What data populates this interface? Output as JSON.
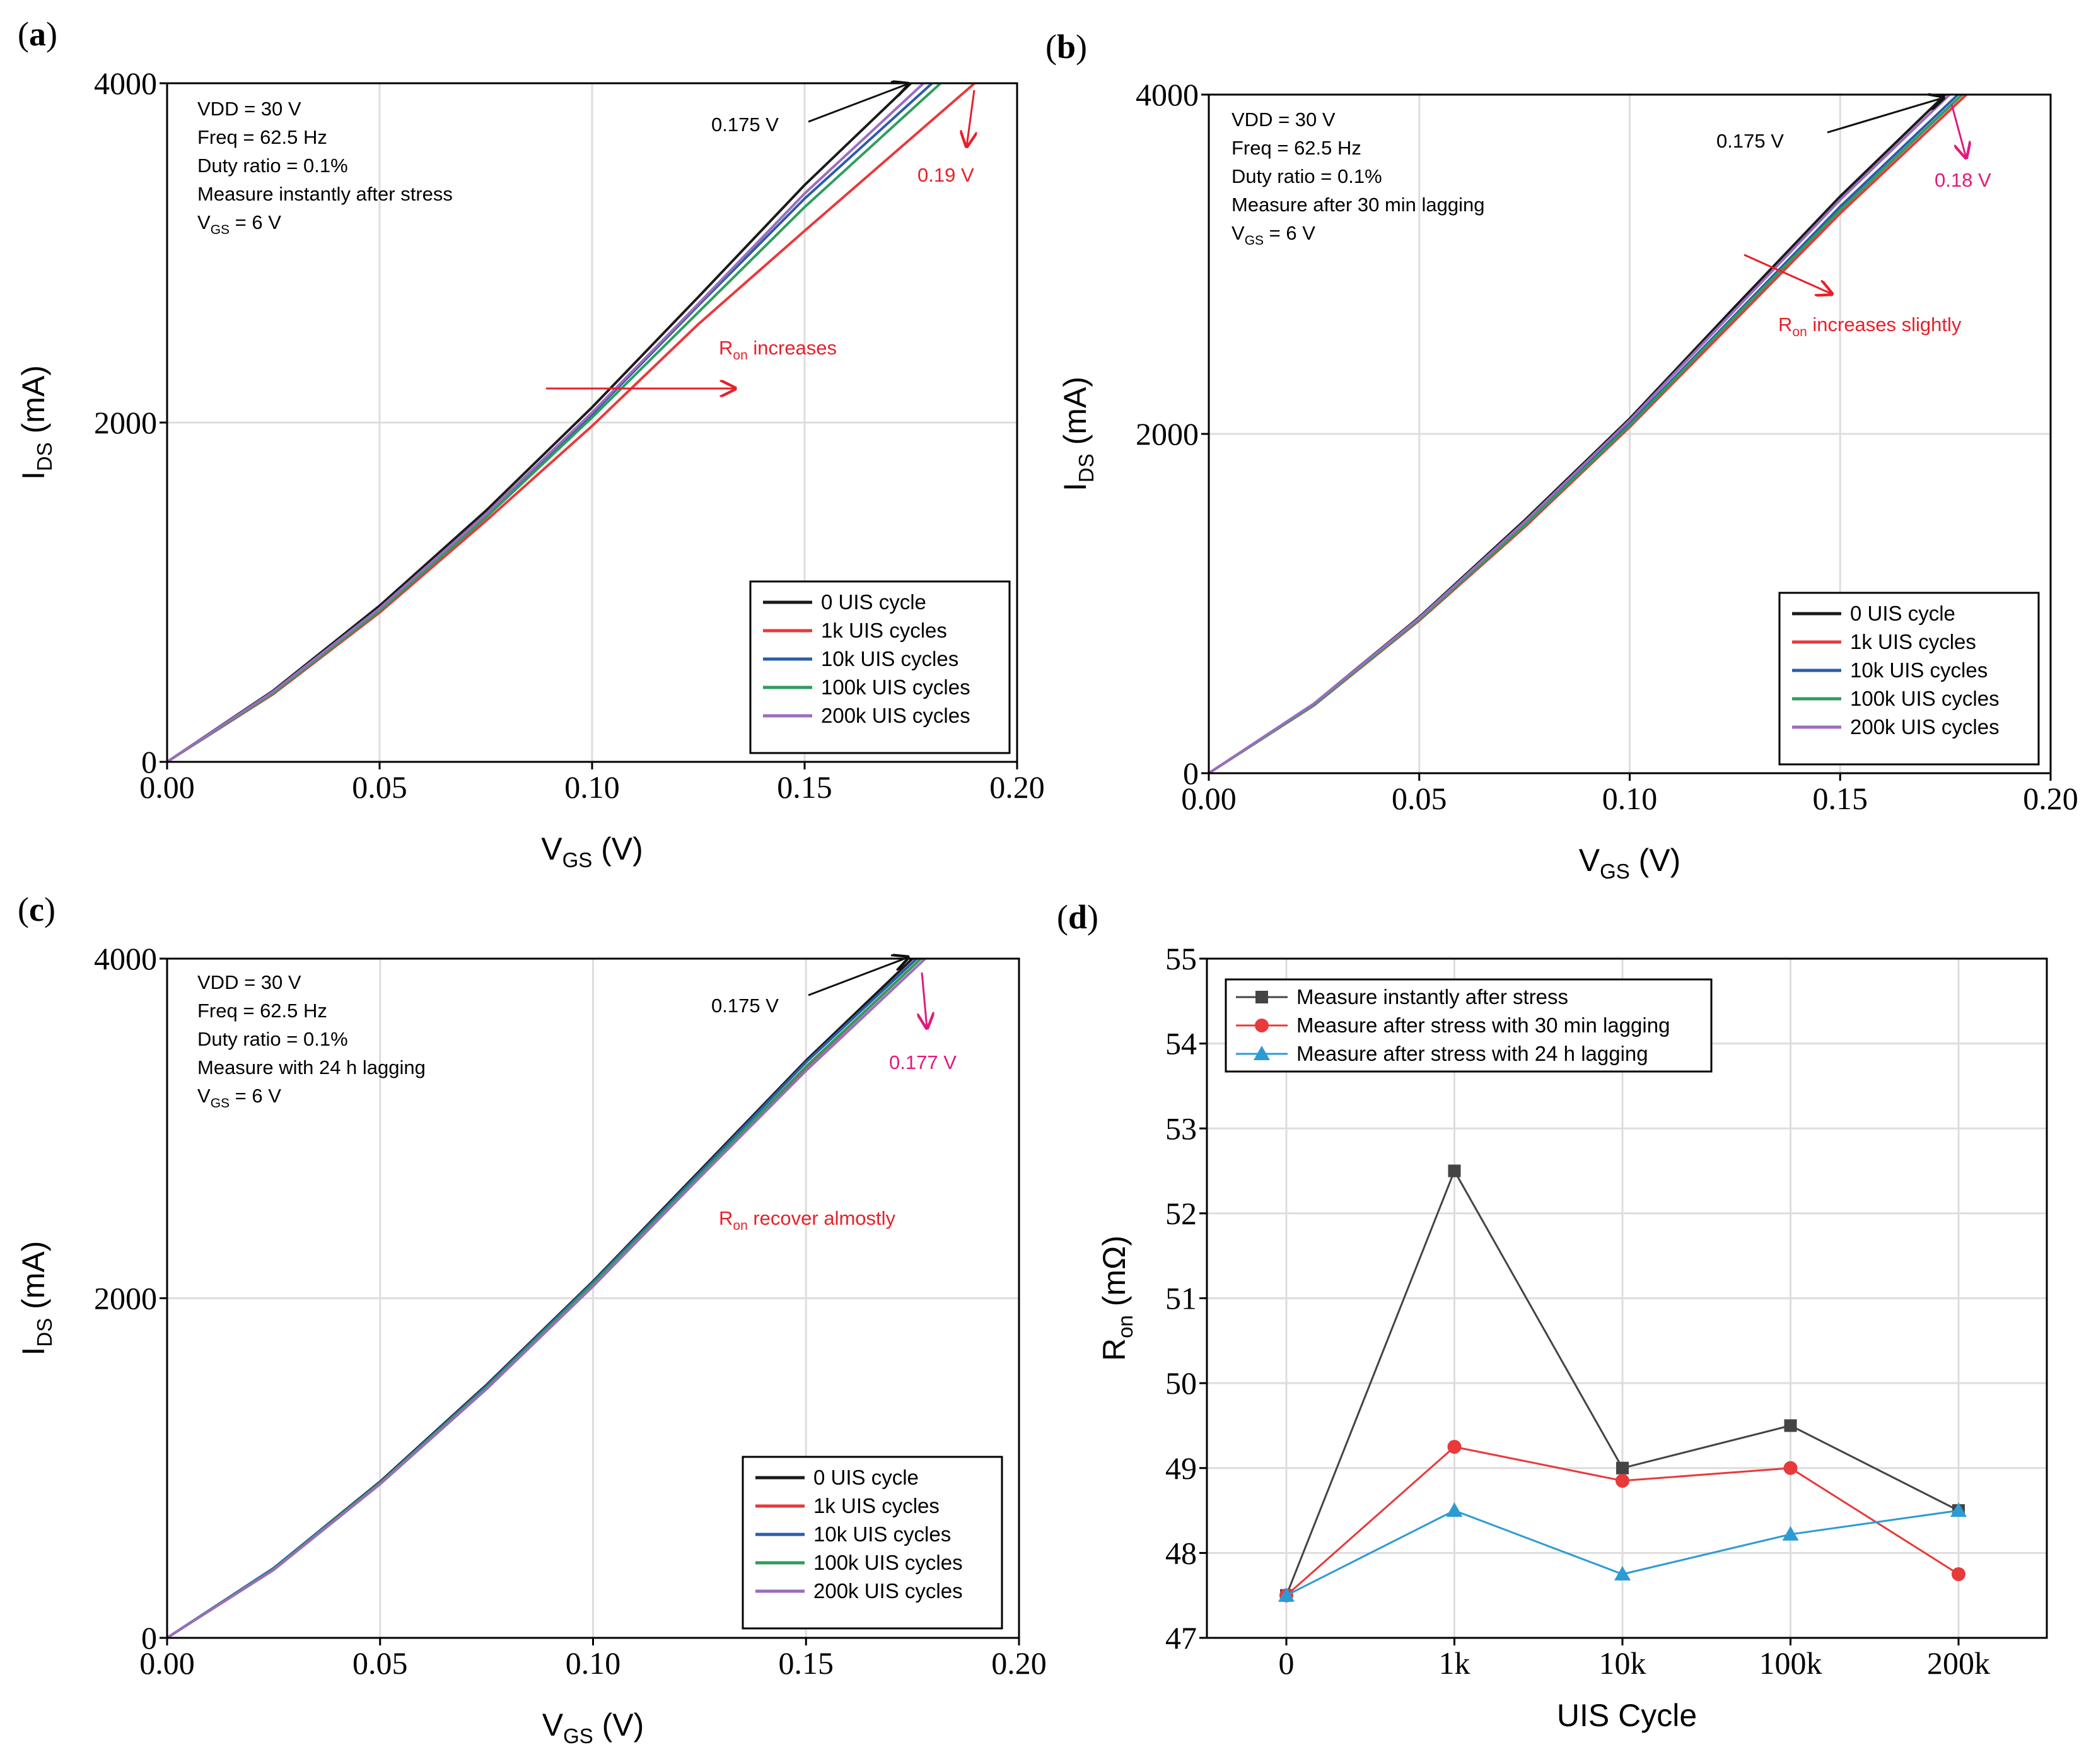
{
  "colors": {
    "s0": "#1a1a1a",
    "s1k": "#e8393b",
    "s10k": "#2a5da8",
    "s100k": "#2e9e5b",
    "s200k": "#9b6cc0",
    "grid": "#dddddd",
    "d_instant": "#444444",
    "d_30min": "#e8393b",
    "d_24h": "#2d9bd3",
    "ann_red": "#e8202a",
    "ann_magenta": "#e0197d"
  },
  "chart_data": [
    {
      "panel": "(a)",
      "type": "line",
      "xlabel_main": "V",
      "xlabel_sub": "GS",
      "xlabel_unit": " (V)",
      "ylabel_main": "I",
      "ylabel_sub": "DS",
      "ylabel_unit": " (mA)",
      "xlim": [
        0,
        0.2
      ],
      "ylim": [
        0,
        4000
      ],
      "xticks": [
        "0.00",
        "0.05",
        "0.10",
        "0.15",
        "0.20"
      ],
      "yticks": [
        "0",
        "2000",
        "4000"
      ],
      "info": [
        "VDD = 30 V",
        "Freq = 62.5 Hz",
        "Duty ratio = 0.1%",
        "Measure instantly after stress"
      ],
      "vgs_main": "V",
      "vgs_sub": "GS",
      "vgs_rest": " = 6 V",
      "ann_black": "0.175 V",
      "ann_colored": "0.19 V",
      "ron_main": "R",
      "ron_sub": "on",
      "ron_rest": " increases",
      "series": [
        {
          "name": "0 UIS cycle",
          "x": [
            0,
            0.025,
            0.05,
            0.075,
            0.1,
            0.125,
            0.15,
            0.175
          ],
          "y": [
            0,
            420,
            920,
            1480,
            2090,
            2740,
            3400,
            4000
          ]
        },
        {
          "name": "1k UIS cycles",
          "x": [
            0,
            0.025,
            0.05,
            0.075,
            0.1,
            0.125,
            0.15,
            0.19
          ],
          "y": [
            0,
            400,
            880,
            1420,
            1980,
            2580,
            3130,
            4000
          ]
        },
        {
          "name": "10k UIS cycles",
          "x": [
            0,
            0.025,
            0.05,
            0.075,
            0.1,
            0.125,
            0.15,
            0.18
          ],
          "y": [
            0,
            410,
            900,
            1450,
            2050,
            2690,
            3320,
            4000
          ]
        },
        {
          "name": "100k UIS cycles",
          "x": [
            0,
            0.025,
            0.05,
            0.075,
            0.1,
            0.125,
            0.15,
            0.182
          ],
          "y": [
            0,
            405,
            890,
            1440,
            2030,
            2650,
            3270,
            4000
          ]
        },
        {
          "name": "200k UIS cycles",
          "x": [
            0,
            0.025,
            0.05,
            0.075,
            0.1,
            0.125,
            0.15,
            0.178
          ],
          "y": [
            0,
            415,
            905,
            1460,
            2060,
            2700,
            3350,
            4000
          ]
        }
      ]
    },
    {
      "panel": "(b)",
      "type": "line",
      "xlabel_main": "V",
      "xlabel_sub": "GS",
      "xlabel_unit": " (V)",
      "ylabel_main": "I",
      "ylabel_sub": "DS",
      "ylabel_unit": " (mA)",
      "xlim": [
        0,
        0.2
      ],
      "ylim": [
        0,
        4000
      ],
      "xticks": [
        "0.00",
        "0.05",
        "0.10",
        "0.15",
        "0.20"
      ],
      "yticks": [
        "0",
        "2000",
        "4000"
      ],
      "info": [
        "VDD = 30 V",
        "Freq = 62.5 Hz",
        "Duty ratio = 0.1%",
        "Measure after 30 min lagging"
      ],
      "vgs_main": "V",
      "vgs_sub": "GS",
      "vgs_rest": " = 6 V",
      "ann_black": "0.175 V",
      "ann_colored": "0.18 V",
      "ron_main": "R",
      "ron_sub": "on",
      "ron_rest": " increases slightly",
      "series": [
        {
          "name": "0 UIS cycle",
          "x": [
            0,
            0.025,
            0.05,
            0.075,
            0.1,
            0.125,
            0.15,
            0.175
          ],
          "y": [
            0,
            410,
            920,
            1490,
            2090,
            2750,
            3400,
            4000
          ]
        },
        {
          "name": "1k UIS cycles",
          "x": [
            0,
            0.025,
            0.05,
            0.075,
            0.1,
            0.125,
            0.15,
            0.18
          ],
          "y": [
            0,
            400,
            900,
            1450,
            2040,
            2670,
            3300,
            4000
          ]
        },
        {
          "name": "10k UIS cycles",
          "x": [
            0,
            0.025,
            0.05,
            0.075,
            0.1,
            0.125,
            0.15,
            0.178
          ],
          "y": [
            0,
            405,
            910,
            1470,
            2060,
            2700,
            3340,
            4000
          ]
        },
        {
          "name": "100k UIS cycles",
          "x": [
            0,
            0.025,
            0.05,
            0.075,
            0.1,
            0.125,
            0.15,
            0.179
          ],
          "y": [
            0,
            402,
            905,
            1460,
            2050,
            2690,
            3320,
            4000
          ]
        },
        {
          "name": "200k UIS cycles",
          "x": [
            0,
            0.025,
            0.05,
            0.075,
            0.1,
            0.125,
            0.15,
            0.176
          ],
          "y": [
            0,
            410,
            915,
            1480,
            2080,
            2730,
            3380,
            4000
          ]
        }
      ]
    },
    {
      "panel": "(c)",
      "type": "line",
      "xlabel_main": "V",
      "xlabel_sub": "GS",
      "xlabel_unit": " (V)",
      "ylabel_main": "I",
      "ylabel_sub": "DS",
      "ylabel_unit": " (mA)",
      "xlim": [
        0,
        0.2
      ],
      "ylim": [
        0,
        4000
      ],
      "xticks": [
        "0.00",
        "0.05",
        "0.10",
        "0.15",
        "0.20"
      ],
      "yticks": [
        "0",
        "2000",
        "4000"
      ],
      "info": [
        "VDD = 30 V",
        "Freq = 62.5 Hz",
        "Duty ratio = 0.1%",
        "Measure with 24 h lagging"
      ],
      "vgs_main": "V",
      "vgs_sub": "GS",
      "vgs_rest": " = 6 V",
      "ann_black": "0.175 V",
      "ann_colored": "0.177 V",
      "ron_main": "R",
      "ron_sub": "on",
      "ron_rest": " recover almostly",
      "series": [
        {
          "name": "0 UIS cycle",
          "x": [
            0,
            0.025,
            0.05,
            0.075,
            0.1,
            0.125,
            0.15,
            0.175
          ],
          "y": [
            0,
            410,
            920,
            1490,
            2100,
            2750,
            3400,
            4000
          ]
        },
        {
          "name": "1k UIS cycles",
          "x": [
            0,
            0.025,
            0.05,
            0.075,
            0.1,
            0.125,
            0.15,
            0.177
          ],
          "y": [
            0,
            405,
            910,
            1470,
            2080,
            2720,
            3360,
            4000
          ]
        },
        {
          "name": "10k UIS cycles",
          "x": [
            0,
            0.025,
            0.05,
            0.075,
            0.1,
            0.125,
            0.15,
            0.176
          ],
          "y": [
            0,
            410,
            915,
            1485,
            2095,
            2740,
            3390,
            4000
          ]
        },
        {
          "name": "100k UIS cycles",
          "x": [
            0,
            0.025,
            0.05,
            0.075,
            0.1,
            0.125,
            0.15,
            0.177
          ],
          "y": [
            0,
            405,
            912,
            1475,
            2085,
            2725,
            3365,
            4000
          ]
        },
        {
          "name": "200k UIS cycles",
          "x": [
            0,
            0.025,
            0.05,
            0.075,
            0.1,
            0.125,
            0.15,
            0.178
          ],
          "y": [
            0,
            400,
            905,
            1465,
            2070,
            2710,
            3340,
            4000
          ]
        }
      ]
    },
    {
      "panel": "(d)",
      "type": "line",
      "xlabel": "UIS Cycle",
      "ylabel_main": "R",
      "ylabel_sub": "on",
      "ylabel_unit": " (mΩ)",
      "categories": [
        "0",
        "1k",
        "10k",
        "100k",
        "200k"
      ],
      "ylim": [
        47,
        55
      ],
      "yticks": [
        "47",
        "48",
        "49",
        "50",
        "51",
        "52",
        "53",
        "54",
        "55"
      ],
      "series": [
        {
          "name": "Measure instantly after stress",
          "marker": "square",
          "values": [
            47.5,
            52.5,
            49.0,
            49.5,
            48.5
          ]
        },
        {
          "name": "Measure after stress with 30 min lagging",
          "marker": "circle",
          "values": [
            47.5,
            49.25,
            48.85,
            49.0,
            47.75
          ]
        },
        {
          "name": "Measure after stress with 24 h lagging",
          "marker": "triangle",
          "values": [
            47.5,
            48.5,
            47.75,
            48.22,
            48.5
          ]
        }
      ]
    }
  ]
}
